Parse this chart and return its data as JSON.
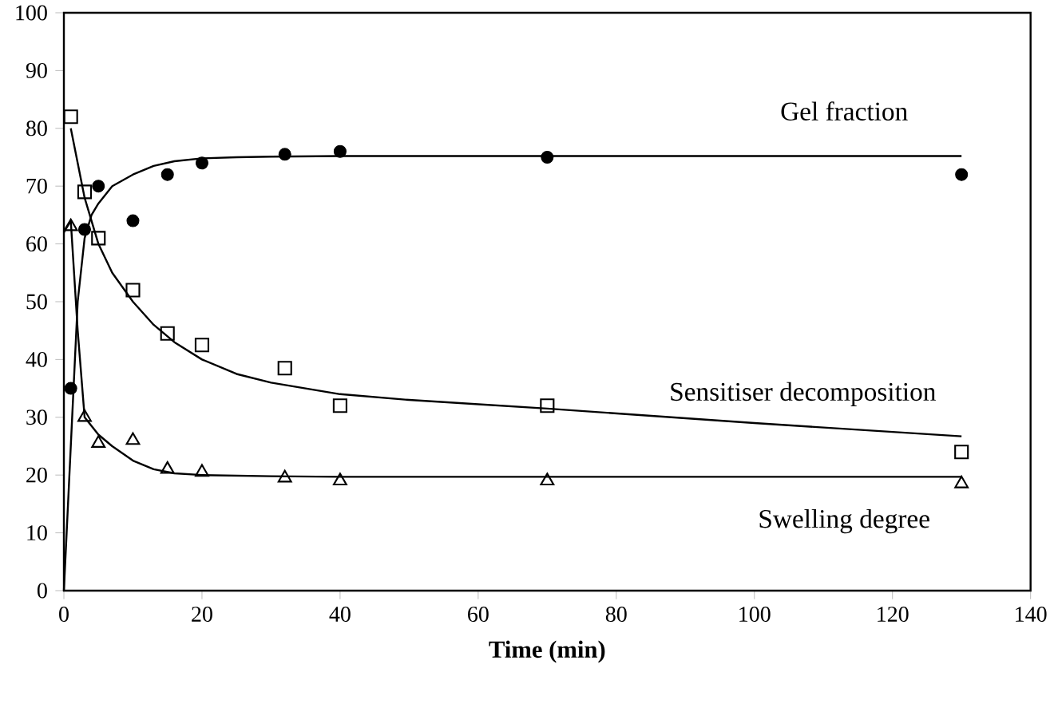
{
  "chart_data": {
    "type": "scatter",
    "xlabel": "**Time (min)**",
    "xlim": [
      0,
      140
    ],
    "xticks": [
      0,
      20,
      40,
      60,
      80,
      100,
      120,
      140
    ],
    "ylim": [
      0,
      100
    ],
    "yticks": [
      0,
      10,
      20,
      30,
      40,
      50,
      60,
      70,
      80,
      90,
      100
    ],
    "series": [
      {
        "name": "Gel fraction",
        "marker": "circle",
        "color": "#000000",
        "x": [
          1,
          3,
          5,
          10,
          15,
          20,
          32,
          40,
          70,
          130
        ],
        "values": [
          35,
          62.5,
          70,
          64,
          72,
          74,
          75.5,
          76,
          75,
          72
        ]
      },
      {
        "name": "Sensitiser decomposition",
        "marker": "square",
        "color": "#000000",
        "x": [
          1,
          3,
          5,
          10,
          15,
          20,
          32,
          40,
          70,
          130
        ],
        "values": [
          82,
          69,
          61,
          52,
          44.5,
          42.5,
          38.5,
          32,
          32,
          24
        ]
      },
      {
        "name": "Swelling degree",
        "marker": "triangle",
        "color": "#000000",
        "x": [
          1,
          3,
          5,
          10,
          15,
          20,
          32,
          40,
          70,
          130
        ],
        "values": [
          63,
          30,
          25.5,
          26,
          21,
          20.5,
          19.5,
          19,
          19,
          18.5
        ]
      },
      {
        "type": "line",
        "marker": "none",
        "color": "#000000",
        "x": [
          0,
          1,
          2,
          3,
          4,
          5,
          7,
          10,
          13,
          16,
          20,
          25,
          30,
          40,
          70,
          130
        ],
        "values": [
          0,
          25,
          50,
          61,
          65,
          67,
          70,
          72,
          73.5,
          74.3,
          74.8,
          75,
          75.1,
          75.2,
          75.2,
          75.2
        ]
      },
      {
        "type": "line",
        "marker": "none",
        "color": "#000000",
        "x": [
          1,
          3,
          5,
          7,
          10,
          13,
          16,
          20,
          25,
          30,
          40,
          50,
          70,
          100,
          130
        ],
        "values": [
          80,
          68,
          60,
          55,
          50,
          46,
          43,
          40,
          37.5,
          36,
          34,
          33,
          31.5,
          29,
          26.7
        ]
      },
      {
        "type": "line",
        "marker": "none",
        "color": "#000000",
        "x": [
          0,
          1,
          2,
          3,
          5,
          7,
          10,
          13,
          16,
          20,
          30,
          40,
          70,
          130
        ],
        "values": [
          62,
          64,
          45,
          30,
          27,
          25,
          22.5,
          21,
          20.3,
          20,
          19.8,
          19.7,
          19.7,
          19.7
        ]
      }
    ]
  }
}
